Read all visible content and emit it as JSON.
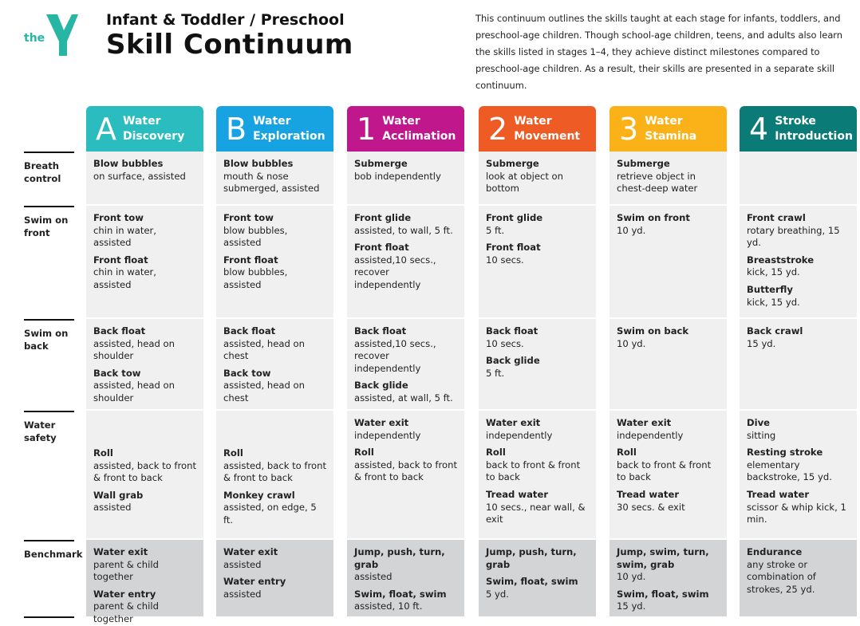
{
  "header": {
    "logo_text": "the",
    "title_small": "Infant & Toddler / Preschool",
    "title_large": "Skill Continuum",
    "description": "This continuum outlines the skills taught at each stage for infants, toddlers, and preschool-age children. Though school-age children, teens, and adults also learn the skills listed in stages 1–4, they achieve distinct milestones compared to preschool-age children. As a result, their skills are presented in a separate skill continuum."
  },
  "stages": [
    {
      "letter": "A",
      "name": "Water Discovery",
      "color": "#2bbcbf"
    },
    {
      "letter": "B",
      "name": "Water Exploration",
      "color": "#17a3e2"
    },
    {
      "letter": "1",
      "name": "Water Acclimation",
      "color": "#c1178d"
    },
    {
      "letter": "2",
      "name": "Water Movement",
      "color": "#ef5b25"
    },
    {
      "letter": "3",
      "name": "Water Stamina",
      "color": "#fbb118"
    },
    {
      "letter": "4",
      "name": "Stroke Introduction",
      "color": "#0b7b77"
    }
  ],
  "rows": [
    {
      "label": "Breath control",
      "cells": [
        [
          {
            "title": "Blow bubbles",
            "detail": "on surface, assisted"
          }
        ],
        [
          {
            "title": "Blow bubbles",
            "detail": "mouth & nose submerged, assisted"
          }
        ],
        [
          {
            "title": "Submerge",
            "detail": "bob independently"
          }
        ],
        [
          {
            "title": "Submerge",
            "detail": "look at object on bottom"
          }
        ],
        [
          {
            "title": "Submerge",
            "detail": "retrieve object in chest-deep water"
          }
        ],
        []
      ]
    },
    {
      "label": "Swim on front",
      "cells": [
        [
          {
            "title": "Front tow",
            "detail": "chin in water, assisted"
          },
          {
            "title": "Front float",
            "detail": "chin in water, assisted"
          }
        ],
        [
          {
            "title": "Front tow",
            "detail": "blow bubbles, assisted"
          },
          {
            "title": "Front float",
            "detail": "blow bubbles, assisted"
          }
        ],
        [
          {
            "title": "Front glide",
            "detail": "assisted, to wall, 5 ft."
          },
          {
            "title": "Front float",
            "detail": "assisted,10 secs., recover independently"
          }
        ],
        [
          {
            "title": "Front glide",
            "detail": "5 ft."
          },
          {
            "title": "Front float",
            "detail": "10 secs."
          }
        ],
        [
          {
            "title": "Swim on front",
            "detail": "10 yd."
          }
        ],
        [
          {
            "title": "Front crawl",
            "detail": "rotary breathing, 15 yd."
          },
          {
            "title": "Breaststroke",
            "detail": "kick, 15 yd."
          },
          {
            "title": "Butterfly",
            "detail": "kick, 15 yd."
          }
        ]
      ]
    },
    {
      "label": "Swim on back",
      "cells": [
        [
          {
            "title": "Back float",
            "detail": "assisted, head on shoulder"
          },
          {
            "title": "Back tow",
            "detail": "assisted, head on shoulder"
          }
        ],
        [
          {
            "title": "Back float",
            "detail": "assisted, head on chest"
          },
          {
            "title": "Back tow",
            "detail": "assisted, head on chest"
          }
        ],
        [
          {
            "title": "Back float",
            "detail": "assisted,10 secs., recover independently"
          },
          {
            "title": "Back glide",
            "detail": "assisted, at wall, 5 ft."
          }
        ],
        [
          {
            "title": "Back float",
            "detail": "10 secs."
          },
          {
            "title": "Back glide",
            "detail": "5 ft."
          }
        ],
        [
          {
            "title": "Swim on back",
            "detail": "10 yd."
          }
        ],
        [
          {
            "title": "Back crawl",
            "detail": "15 yd."
          }
        ]
      ]
    },
    {
      "label": "Water safety",
      "cells": [
        [
          {
            "title": "Roll",
            "detail": "assisted, back to front & front to back"
          },
          {
            "title": "Wall grab",
            "detail": "assisted"
          }
        ],
        [
          {
            "title": "Roll",
            "detail": "assisted, back to front & front to back"
          },
          {
            "title": "Monkey crawl",
            "detail": "assisted, on edge, 5 ft."
          }
        ],
        [
          {
            "title": "Water exit",
            "detail": "independently"
          },
          {
            "title": "Roll",
            "detail": "assisted, back to front & front to back"
          }
        ],
        [
          {
            "title": "Water exit",
            "detail": "independently"
          },
          {
            "title": "Roll",
            "detail": "back to front & front to back"
          },
          {
            "title": "Tread water",
            "detail": "10 secs., near wall, & exit"
          }
        ],
        [
          {
            "title": "Water exit",
            "detail": "independently"
          },
          {
            "title": "Roll",
            "detail": "back to front & front to back"
          },
          {
            "title": "Tread water",
            "detail": "30 secs. & exit"
          }
        ],
        [
          {
            "title": "Dive",
            "detail": "sitting"
          },
          {
            "title": "Resting stroke",
            "detail": "elementary backstroke, 15 yd."
          },
          {
            "title": "Tread water",
            "detail": "scissor & whip kick, 1 min."
          }
        ]
      ]
    },
    {
      "label": "Benchmark",
      "cells": [
        [
          {
            "title": "Water exit",
            "detail": "parent & child together"
          },
          {
            "title": "Water entry",
            "detail": "parent & child together"
          }
        ],
        [
          {
            "title": "Water exit",
            "detail": "assisted"
          },
          {
            "title": "Water entry",
            "detail": "assisted"
          }
        ],
        [
          {
            "title": "Jump, push, turn, grab",
            "detail": "assisted"
          },
          {
            "title": "Swim, float, swim",
            "detail": "assisted, 10 ft."
          }
        ],
        [
          {
            "title": "Jump, push, turn, grab"
          },
          {
            "title": "Swim, float, swim",
            "detail": "5 yd."
          }
        ],
        [
          {
            "title": "Jump, swim, turn, swim, grab",
            "detail": "10 yd."
          },
          {
            "title": "Swim, float, swim",
            "detail": "15 yd."
          }
        ],
        [
          {
            "title": "Endurance",
            "detail": "any stroke or combination of strokes, 25 yd."
          }
        ]
      ]
    }
  ]
}
